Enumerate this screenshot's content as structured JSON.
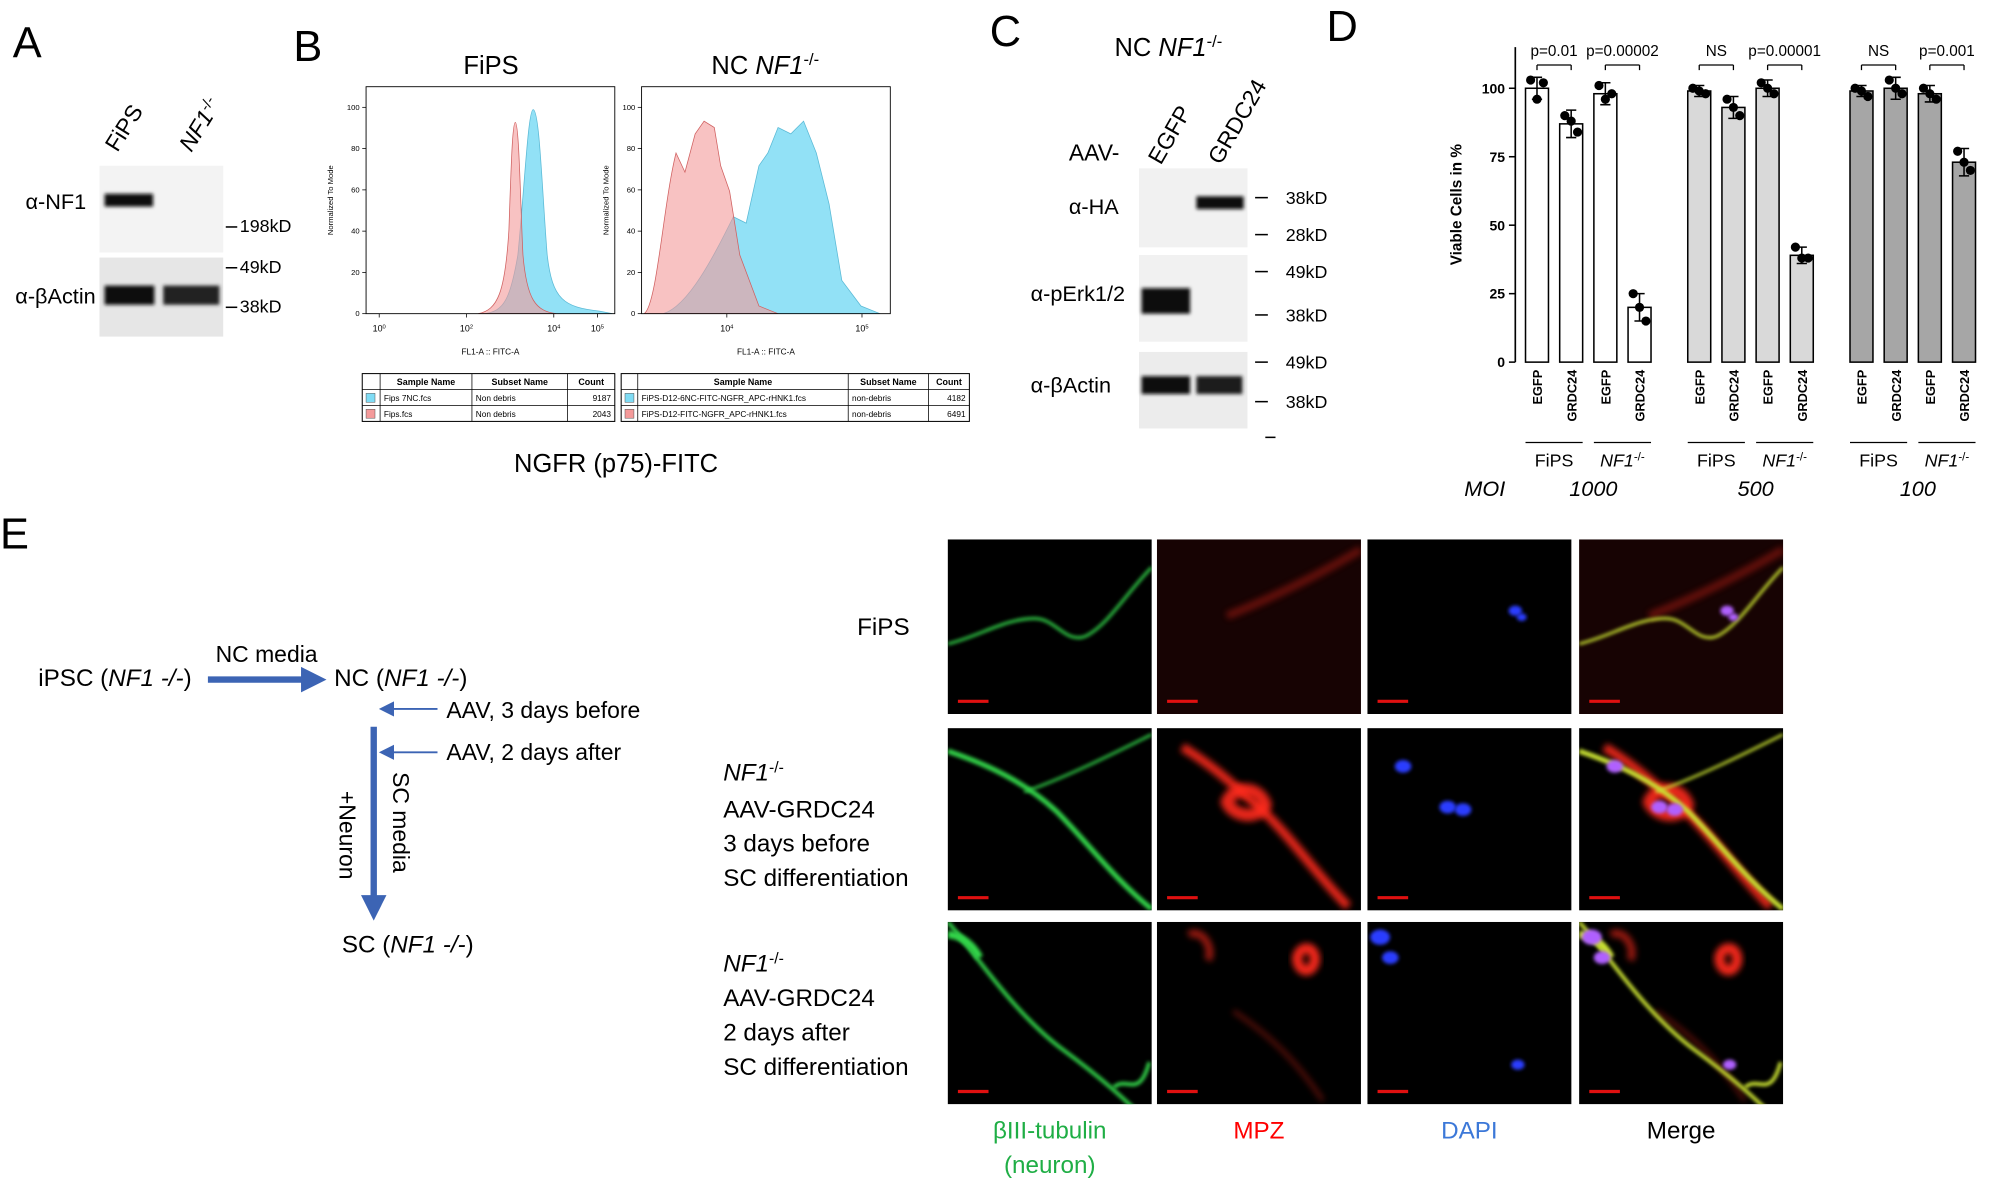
{
  "panel_a": {
    "letter": "A",
    "lanes": [
      "FiPS",
      {
        "gene": "NF1",
        "sup": "-/-"
      }
    ],
    "antibodies": [
      "α-NF1",
      "α-βActin"
    ],
    "markers": [
      "198kD",
      "49kD",
      "38kD"
    ]
  },
  "panel_b": {
    "letter": "B",
    "titles": [
      "FiPS",
      {
        "prefix": "NC ",
        "gene": "NF1",
        "sup": "-/-"
      }
    ],
    "plots": [
      {
        "y_label": "Normalized To Mode",
        "x_label": "FL1-A :: FITC-A",
        "xscale": "log",
        "xlim": [
          0.5,
          250000
        ],
        "xticks": [
          {
            "value": 1,
            "base": 10,
            "exp": 0
          },
          {
            "value": 100,
            "base": 10,
            "exp": 2
          },
          {
            "value": 10000,
            "base": 10,
            "exp": 4
          },
          {
            "value": 100000,
            "base": 10,
            "exp": 5
          }
        ],
        "ylim": [
          0,
          110
        ],
        "yticks": [
          0,
          20,
          40,
          60,
          80,
          100
        ],
        "colors": [
          "#7fdcf5",
          "#f49a9a"
        ]
      },
      {
        "y_label": "Normalized To Mode",
        "x_label": "FL1-A :: FITC-A",
        "xscale": "log",
        "xlim": [
          2340,
          162000
        ],
        "xticks": [
          {
            "value": 10000,
            "base": 10,
            "exp": 4
          },
          {
            "value": 100000,
            "base": 10,
            "exp": 5
          }
        ],
        "ylim": [
          0,
          110
        ],
        "yticks": [
          0,
          20,
          40,
          60,
          80,
          100
        ],
        "colors": [
          "#7fdcf5",
          "#f49a9a"
        ]
      }
    ],
    "tables": [
      {
        "header": [
          "Sample Name",
          "Subset Name",
          "Count"
        ],
        "rows": [
          [
            "Fips 7NC.fcs",
            "Non debris",
            9187
          ],
          [
            "Fips.fcs",
            "Non debris",
            2043
          ]
        ]
      },
      {
        "header": [
          "Sample Name",
          "Subset Name",
          "Count"
        ],
        "rows": [
          [
            "FiPS-D12-6NC-FITC-NGFR_APC-rHNK1.fcs",
            "non-debris",
            4182
          ],
          [
            "FiPS-D12-FITC-NGFR_APC-rHNK1.fcs",
            "non-debris",
            6491
          ]
        ]
      }
    ],
    "x_title": "NGFR (p75)-FITC"
  },
  "panel_c": {
    "letter": "C",
    "title": {
      "prefix": "NC ",
      "gene": "NF1",
      "sup": "-/-"
    },
    "vector_label": "AAV-",
    "lanes": [
      "EGFP",
      "GRDC24"
    ],
    "antibodies": [
      "α-HA",
      "α-pErk1/2",
      "α-βActin"
    ],
    "markers": [
      "38kD",
      "28kD",
      "49kD",
      "38kD",
      "49kD",
      "38kD"
    ]
  },
  "chart_data": {
    "type": "bar",
    "letter": "D",
    "y_label": "Viable Cells in %",
    "ylim": [
      0,
      115
    ],
    "yticks": [
      0,
      25,
      50,
      75,
      100
    ],
    "categories": [
      "EGFP",
      "GRDC24",
      "EGFP",
      "GRDC24",
      "EGFP",
      "GRDC24",
      "EGFP",
      "GRDC24",
      "EGFP",
      "GRDC24",
      "EGFP",
      "GRDC24"
    ],
    "values": [
      100,
      87,
      98,
      20,
      99,
      93,
      100,
      39,
      99,
      100,
      98,
      73
    ],
    "errors": [
      4,
      5,
      4,
      5,
      2,
      4,
      3,
      3,
      2,
      4,
      3,
      5
    ],
    "points": [
      [
        103,
        102,
        96
      ],
      [
        90,
        84,
        88
      ],
      [
        101,
        98,
        96
      ],
      [
        25,
        15,
        20
      ],
      [
        100,
        98,
        99
      ],
      [
        96,
        90,
        93
      ],
      [
        102,
        98,
        100
      ],
      [
        42,
        38,
        38
      ],
      [
        100,
        97,
        99
      ],
      [
        103,
        98,
        100
      ],
      [
        100,
        96,
        98
      ],
      [
        77,
        70,
        73
      ]
    ],
    "colors": [
      "#ffffff",
      "#ffffff",
      "#ffffff",
      "#ffffff",
      "#d9d9d9",
      "#d9d9d9",
      "#d9d9d9",
      "#d9d9d9",
      "#a6a6a6",
      "#a6a6a6",
      "#a6a6a6",
      "#a6a6a6"
    ],
    "groups": [
      "FiPS",
      {
        "gene": "NF1",
        "sup": "-/-"
      },
      "FiPS",
      {
        "gene": "NF1",
        "sup": "-/-"
      },
      "FiPS",
      {
        "gene": "NF1",
        "sup": "-/-"
      }
    ],
    "annotations": [
      "p=0.01",
      "p=0.00002",
      "NS",
      "p=0.00001",
      "NS",
      "p=0.001"
    ],
    "moi_label": "MOI",
    "moi": [
      1000,
      500,
      100
    ]
  },
  "panel_e": {
    "letter": "E",
    "scheme": {
      "start": [
        "iPSC (",
        "NF1 -/-",
        ")"
      ],
      "step1": "NC media",
      "middle": [
        "NC (",
        "NF1 -/-",
        ")"
      ],
      "treatments": [
        "AAV, 3 days before",
        "AAV, 2 days after"
      ],
      "step2": "SC media",
      "co_culture": "+Neuron",
      "end": [
        "SC (",
        "NF1 -/-",
        ")"
      ]
    },
    "rows": [
      [
        "FiPS"
      ],
      [
        {
          "gene": "NF1",
          "sup": "-/-"
        },
        "AAV-GRDC24",
        "3 days before",
        "SC differentiation"
      ],
      [
        {
          "gene": "NF1",
          "sup": "-/-"
        },
        "AAV-GRDC24",
        "2 days after",
        "SC differentiation"
      ]
    ],
    "columns": [
      [
        "βIII-tubulin",
        "(neuron)"
      ],
      [
        "MPZ"
      ],
      [
        "DAPI"
      ],
      [
        "Merge"
      ]
    ],
    "column_colors": [
      "#1fae45",
      "#ff0000",
      "#3c78d8",
      "#000000"
    ]
  }
}
